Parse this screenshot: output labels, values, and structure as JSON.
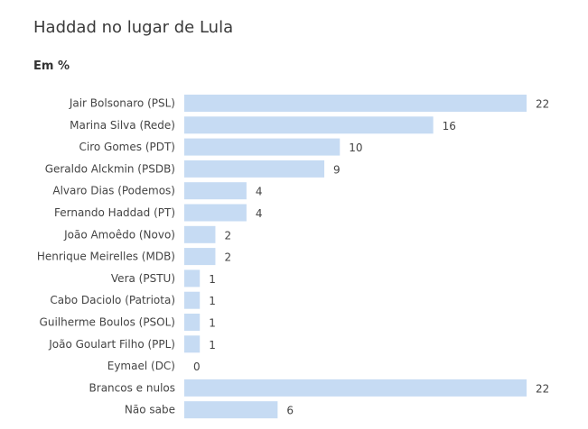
{
  "title": "Haddad no lugar de Lula",
  "subtitle": "Em %",
  "bar_color": "#c6dbf3",
  "chart_data": {
    "type": "bar",
    "orientation": "horizontal",
    "title": "Haddad no lugar de Lula",
    "subtitle": "Em %",
    "categories": [
      "Jair Bolsonaro (PSL)",
      "Marina Silva (Rede)",
      "Ciro Gomes (PDT)",
      "Geraldo Alckmin (PSDB)",
      "Alvaro Dias (Podemos)",
      "Fernando Haddad (PT)",
      "João Amoêdo (Novo)",
      "Henrique Meirelles (MDB)",
      "Vera (PSTU)",
      "Cabo Daciolo (Patriota)",
      "Guilherme Boulos (PSOL)",
      "João Goulart Filho (PPL)",
      "Eymael (DC)",
      "Brancos e nulos",
      "Não sabe"
    ],
    "values": [
      22,
      16,
      10,
      9,
      4,
      4,
      2,
      2,
      1,
      1,
      1,
      1,
      0,
      22,
      6
    ],
    "xlim": [
      0,
      22
    ],
    "grid": false,
    "data_labels": true
  }
}
